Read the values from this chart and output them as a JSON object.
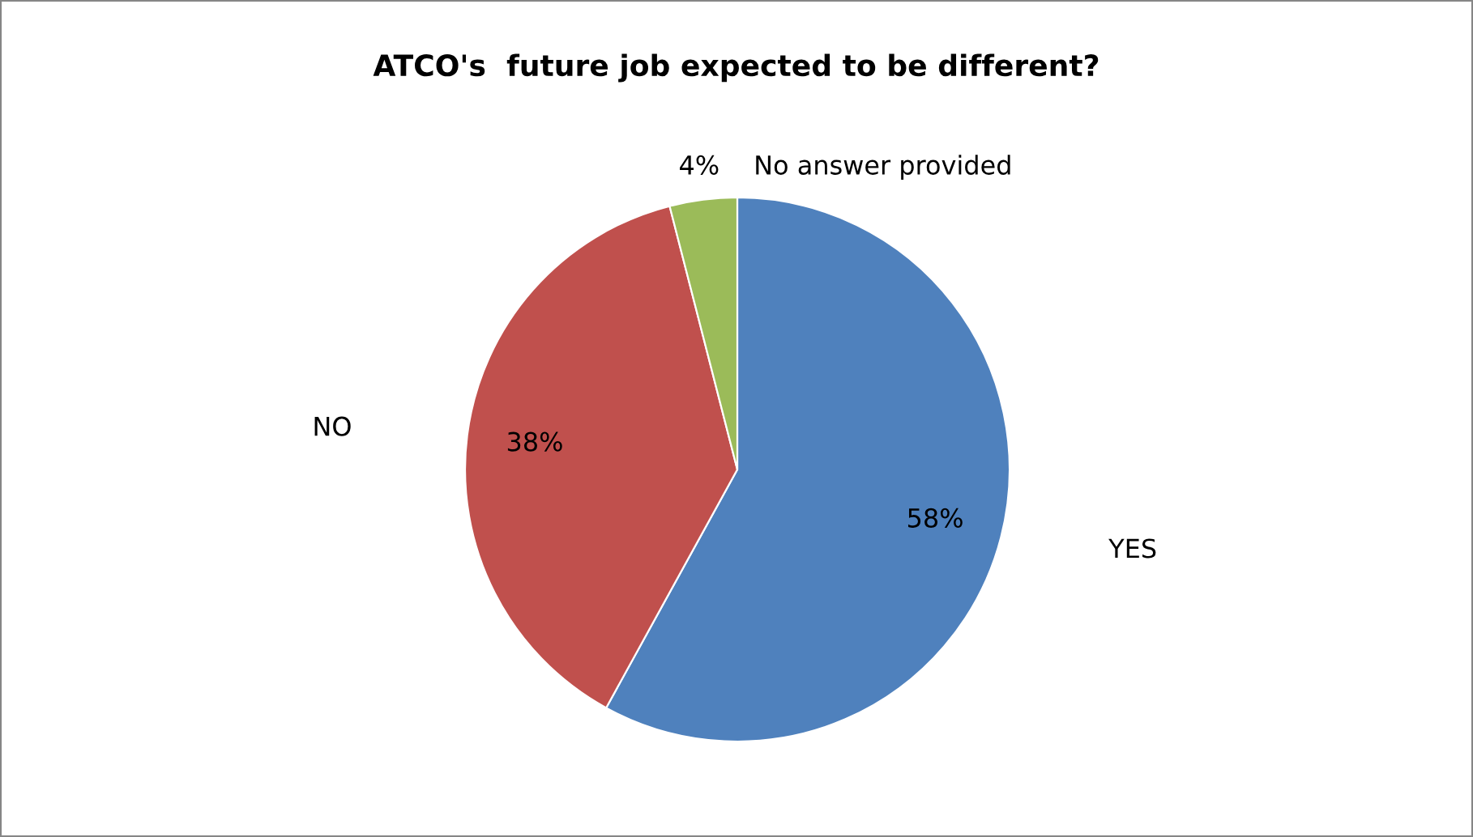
{
  "chart_data": {
    "type": "pie",
    "title": "ATCO's  future job expected to be different?",
    "categories": [
      "YES",
      "NO",
      "No answer provided"
    ],
    "values": [
      58,
      38,
      4
    ],
    "value_labels": [
      "58%",
      "38%",
      "4%"
    ],
    "colors": [
      "#4f81bd",
      "#c0504d",
      "#9bbb59"
    ],
    "legend": false
  }
}
